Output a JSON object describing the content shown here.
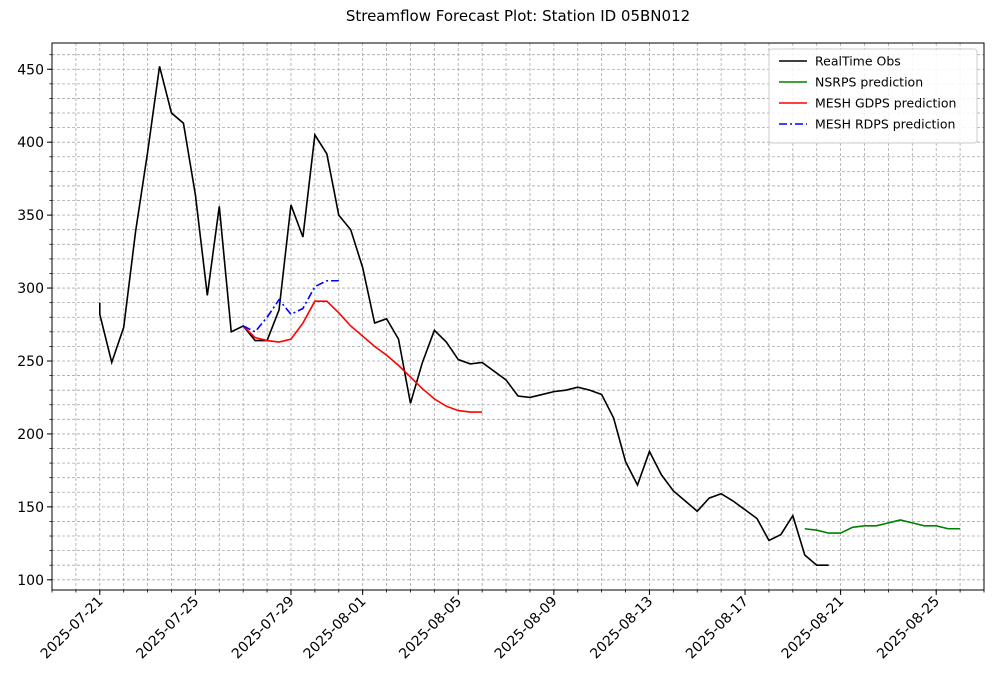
{
  "chart_data": {
    "type": "line",
    "drawstyle": "steps-post",
    "title": "Streamflow Forecast Plot: Station ID 05BN012",
    "xlabel": "",
    "ylabel": "",
    "xlim": [
      "2025-07-19",
      "2025-08-27"
    ],
    "ylim": [
      93,
      468
    ],
    "grid": "major and minor, dashed gray",
    "legend_position": "top-right",
    "x_ticks": [
      "2025-07-21",
      "2025-07-25",
      "2025-07-29",
      "2025-08-01",
      "2025-08-05",
      "2025-08-09",
      "2025-08-13",
      "2025-08-17",
      "2025-08-21",
      "2025-08-25"
    ],
    "y_ticks": [
      100,
      150,
      200,
      250,
      300,
      350,
      400,
      450
    ],
    "series": [
      {
        "name": "RealTime Obs",
        "color": "#000000",
        "dash": "",
        "points": [
          [
            "2025-07-21T00:00",
            290
          ],
          [
            "2025-07-21T00:00",
            282
          ],
          [
            "2025-07-21T12:00",
            249
          ],
          [
            "2025-07-22T00:00",
            273
          ],
          [
            "2025-07-22T12:00",
            339
          ],
          [
            "2025-07-23T00:00",
            393
          ],
          [
            "2025-07-23T12:00",
            452
          ],
          [
            "2025-07-24T00:00",
            420
          ],
          [
            "2025-07-24T12:00",
            413
          ],
          [
            "2025-07-25T00:00",
            364
          ],
          [
            "2025-07-25T12:00",
            295
          ],
          [
            "2025-07-26T00:00",
            356
          ],
          [
            "2025-07-26T12:00",
            270
          ],
          [
            "2025-07-27T00:00",
            274
          ],
          [
            "2025-07-27T12:00",
            264
          ],
          [
            "2025-07-28T00:00",
            264
          ],
          [
            "2025-07-28T12:00",
            285
          ],
          [
            "2025-07-29T00:00",
            357
          ],
          [
            "2025-07-29T12:00",
            335
          ],
          [
            "2025-07-30T00:00",
            405
          ],
          [
            "2025-07-30T12:00",
            392
          ],
          [
            "2025-07-31T00:00",
            350
          ],
          [
            "2025-07-31T12:00",
            340
          ],
          [
            "2025-08-01T00:00",
            314
          ],
          [
            "2025-08-01T12:00",
            276
          ],
          [
            "2025-08-02T00:00",
            279
          ],
          [
            "2025-08-02T12:00",
            265
          ],
          [
            "2025-08-03T00:00",
            221
          ],
          [
            "2025-08-03T12:00",
            249
          ],
          [
            "2025-08-04T00:00",
            271
          ],
          [
            "2025-08-04T12:00",
            263
          ],
          [
            "2025-08-05T00:00",
            251
          ],
          [
            "2025-08-05T12:00",
            248
          ],
          [
            "2025-08-06T00:00",
            249
          ],
          [
            "2025-08-07T00:00",
            237
          ],
          [
            "2025-08-07T12:00",
            226
          ],
          [
            "2025-08-08T00:00",
            225
          ],
          [
            "2025-08-08T12:00",
            227
          ],
          [
            "2025-08-09T00:00",
            229
          ],
          [
            "2025-08-09T12:00",
            230
          ],
          [
            "2025-08-10T00:00",
            232
          ],
          [
            "2025-08-10T12:00",
            230
          ],
          [
            "2025-08-11T00:00",
            227
          ],
          [
            "2025-08-11T12:00",
            211
          ],
          [
            "2025-08-12T00:00",
            181
          ],
          [
            "2025-08-12T12:00",
            165
          ],
          [
            "2025-08-13T00:00",
            188
          ],
          [
            "2025-08-13T12:00",
            172
          ],
          [
            "2025-08-14T00:00",
            161
          ],
          [
            "2025-08-14T12:00",
            154
          ],
          [
            "2025-08-15T00:00",
            147
          ],
          [
            "2025-08-15T12:00",
            156
          ],
          [
            "2025-08-16T00:00",
            159
          ],
          [
            "2025-08-16T12:00",
            154
          ],
          [
            "2025-08-17T00:00",
            148
          ],
          [
            "2025-08-17T12:00",
            142
          ],
          [
            "2025-08-18T00:00",
            127
          ],
          [
            "2025-08-18T12:00",
            131
          ],
          [
            "2025-08-19T00:00",
            144
          ],
          [
            "2025-08-19T12:00",
            117
          ],
          [
            "2025-08-20T00:00",
            110
          ],
          [
            "2025-08-20T12:00",
            110
          ]
        ]
      },
      {
        "name": "NSRPS prediction",
        "color": "#008000",
        "dash": "",
        "points": [
          [
            "2025-08-19T12:00",
            135
          ],
          [
            "2025-08-20T00:00",
            134
          ],
          [
            "2025-08-20T12:00",
            132
          ],
          [
            "2025-08-21T00:00",
            132
          ],
          [
            "2025-08-21T12:00",
            136
          ],
          [
            "2025-08-22T00:00",
            137
          ],
          [
            "2025-08-22T12:00",
            137
          ],
          [
            "2025-08-23T00:00",
            139
          ],
          [
            "2025-08-23T12:00",
            141
          ],
          [
            "2025-08-24T00:00",
            139
          ],
          [
            "2025-08-24T12:00",
            137
          ],
          [
            "2025-08-25T00:00",
            137
          ],
          [
            "2025-08-25T12:00",
            135
          ],
          [
            "2025-08-26T00:00",
            135
          ]
        ]
      },
      {
        "name": "MESH GDPS prediction",
        "color": "#ff0000",
        "dash": "",
        "points": [
          [
            "2025-07-27T00:00",
            274
          ],
          [
            "2025-07-27T12:00",
            266
          ],
          [
            "2025-07-28T00:00",
            264
          ],
          [
            "2025-07-28T12:00",
            263
          ],
          [
            "2025-07-29T00:00",
            265
          ],
          [
            "2025-07-29T12:00",
            276
          ],
          [
            "2025-07-30T00:00",
            291
          ],
          [
            "2025-07-30T12:00",
            291
          ],
          [
            "2025-07-31T00:00",
            283
          ],
          [
            "2025-07-31T12:00",
            274
          ],
          [
            "2025-08-01T00:00",
            267
          ],
          [
            "2025-08-01T12:00",
            260
          ],
          [
            "2025-08-02T00:00",
            254
          ],
          [
            "2025-08-02T12:00",
            247
          ],
          [
            "2025-08-03T00:00",
            239
          ],
          [
            "2025-08-03T12:00",
            231
          ],
          [
            "2025-08-04T00:00",
            224
          ],
          [
            "2025-08-04T12:00",
            219
          ],
          [
            "2025-08-05T00:00",
            216
          ],
          [
            "2025-08-05T12:00",
            215
          ],
          [
            "2025-08-06T00:00",
            215
          ]
        ]
      },
      {
        "name": "MESH RDPS prediction",
        "color": "#0000ff",
        "dash": "8,3,2,3",
        "points": [
          [
            "2025-07-27T00:00",
            274
          ],
          [
            "2025-07-27T12:00",
            270
          ],
          [
            "2025-07-28T00:00",
            280
          ],
          [
            "2025-07-28T12:00",
            292
          ],
          [
            "2025-07-29T00:00",
            282
          ],
          [
            "2025-07-29T12:00",
            286
          ],
          [
            "2025-07-30T00:00",
            301
          ],
          [
            "2025-07-30T12:00",
            305
          ],
          [
            "2025-07-31T00:00",
            305
          ]
        ]
      }
    ]
  }
}
